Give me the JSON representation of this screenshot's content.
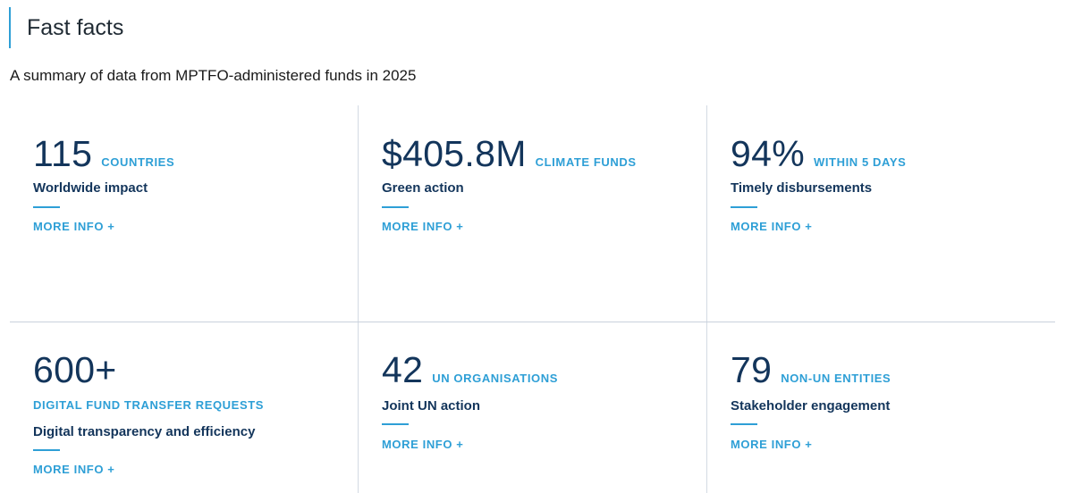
{
  "heading": "Fast facts",
  "subtitle": "A summary of data from MPTFO-administered funds in 2025",
  "colors": {
    "accent": "#2e9fd6",
    "navy": "#13355b",
    "divider": "#d3dae3"
  },
  "cards": [
    {
      "value": "115",
      "unit": "COUNTRIES",
      "label": "Worldwide impact",
      "more": "MORE INFO +"
    },
    {
      "value": "$405.8M",
      "unit": "CLIMATE FUNDS",
      "label": "Green action",
      "more": "MORE INFO +"
    },
    {
      "value": "94%",
      "unit": "WITHIN 5 DAYS",
      "label": "Timely disbursements",
      "more": "MORE INFO +"
    },
    {
      "value": "600+",
      "unit": "DIGITAL FUND TRANSFER REQUESTS",
      "label": "Digital transparency and efficiency",
      "more": "MORE INFO +"
    },
    {
      "value": "42",
      "unit": "UN ORGANISATIONS",
      "label": "Joint UN action",
      "more": "MORE INFO +"
    },
    {
      "value": "79",
      "unit": "NON-UN ENTITIES",
      "label": "Stakeholder engagement",
      "more": "MORE INFO +"
    }
  ]
}
